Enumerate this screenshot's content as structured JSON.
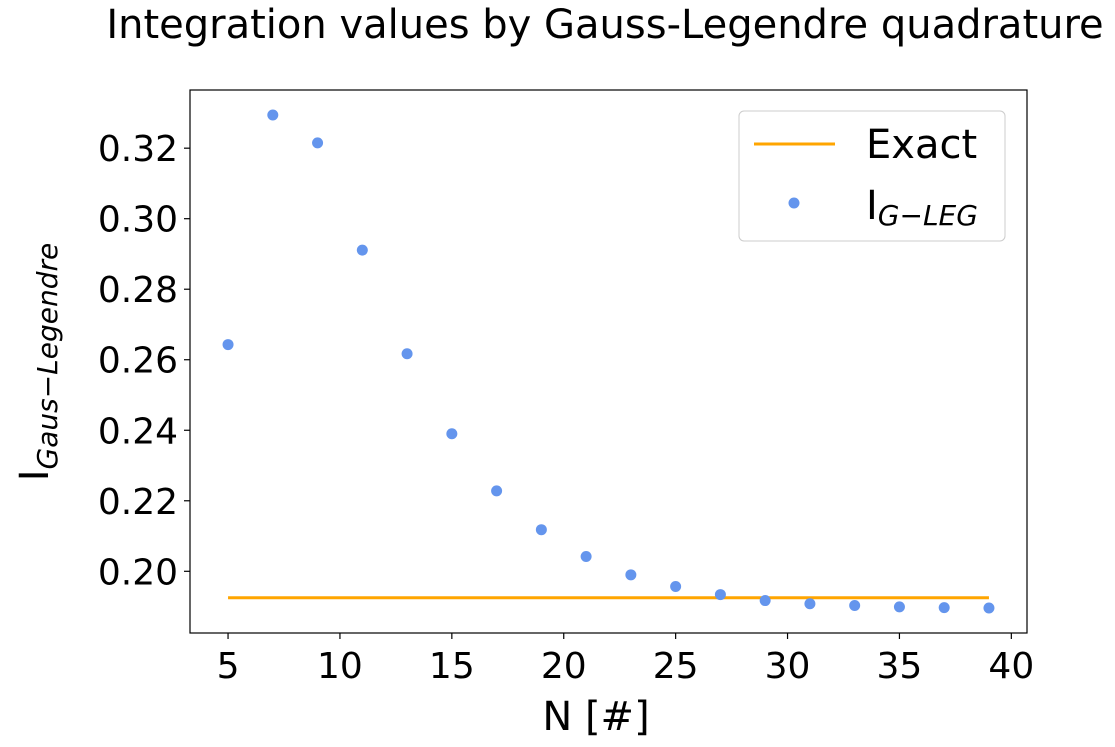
{
  "chart_data": {
    "type": "scatter",
    "title": "Integration values by Gauss-Legendre quadrature",
    "xlabel": "N [#]",
    "ylabel": {
      "base": "I",
      "sub": "Gaus−Legendre"
    },
    "xlim": [
      3.3,
      40.7
    ],
    "ylim": [
      0.1825,
      0.3365
    ],
    "xticks": [
      5,
      10,
      15,
      20,
      25,
      30,
      35,
      40
    ],
    "yticks": [
      0.2,
      0.22,
      0.24,
      0.26,
      0.28,
      0.3,
      0.32
    ],
    "xtick_labels": [
      "5",
      "10",
      "15",
      "20",
      "25",
      "30",
      "35",
      "40"
    ],
    "ytick_labels": [
      "0.20",
      "0.22",
      "0.24",
      "0.26",
      "0.28",
      "0.30",
      "0.32"
    ],
    "grid": false,
    "legend_position": "top-right",
    "series": [
      {
        "name": "Exact",
        "label_base": "Exact",
        "kind": "line",
        "color": "#FFA500",
        "x": [
          5,
          39
        ],
        "y": [
          0.1925,
          0.1925
        ]
      },
      {
        "name": "I_{G-LEG}",
        "label_base": "I",
        "label_sub": "G−LEG",
        "kind": "scatter",
        "color": "#6495ED",
        "x": [
          5,
          7,
          9,
          11,
          13,
          15,
          17,
          19,
          21,
          23,
          25,
          27,
          29,
          31,
          33,
          35,
          37,
          39
        ],
        "y": [
          0.2643,
          0.3294,
          0.3215,
          0.2911,
          0.2617,
          0.239,
          0.2228,
          0.2118,
          0.2042,
          0.199,
          0.1957,
          0.1934,
          0.1917,
          0.1908,
          0.1903,
          0.1899,
          0.1897,
          0.1896
        ]
      }
    ]
  }
}
